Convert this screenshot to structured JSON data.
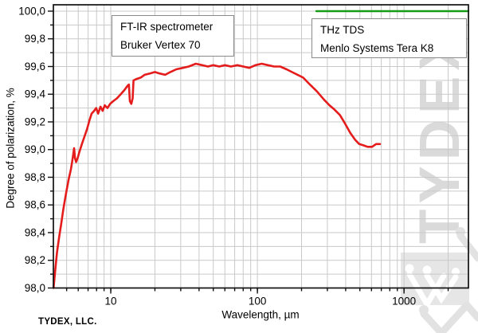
{
  "brand": {
    "label": "TYDEX, LLC."
  },
  "watermark": {
    "text": "TYDEX",
    "color": "#dadada"
  },
  "annotations": {
    "ftir": {
      "lines": [
        "FT-IR spectrometer",
        "Bruker Vertex 70"
      ]
    },
    "thz": {
      "lines": [
        "THz TDS",
        "Menlo Systems Tera K8"
      ]
    }
  },
  "chart_data": {
    "type": "line",
    "title": "",
    "xlabel": "Wavelength, µm",
    "ylabel": "Degree of polarization, %",
    "x_scale": "log",
    "xlim": [
      4.06,
      2750
    ],
    "ylim": [
      98.0,
      100.046
    ],
    "grid": true,
    "legend_position": "none",
    "x_ticks": [
      10,
      100,
      1000
    ],
    "x_tick_labels": [
      "10",
      "100",
      "1000"
    ],
    "y_ticks": [
      98.0,
      98.2,
      98.4,
      98.6,
      98.8,
      99.0,
      99.2,
      99.4,
      99.6,
      99.8,
      100.0
    ],
    "y_tick_labels": [
      "98,0",
      "98,2",
      "98,4",
      "98,6",
      "98,8",
      "99,0",
      "99,2",
      "99,4",
      "99,6",
      "99,8",
      "100,0"
    ],
    "grid_color": "#c9c9c9",
    "axis_color": "#111111",
    "series": [
      {
        "name": "FT-IR spectrometer Bruker Vertex 70",
        "color": "#e51c1c",
        "width": 2.6,
        "points": [
          [
            4.07,
            98.0
          ],
          [
            4.12,
            98.06
          ],
          [
            4.2,
            98.15
          ],
          [
            4.3,
            98.26
          ],
          [
            4.45,
            98.37
          ],
          [
            4.6,
            98.47
          ],
          [
            4.75,
            98.57
          ],
          [
            4.95,
            98.68
          ],
          [
            5.15,
            98.78
          ],
          [
            5.35,
            98.86
          ],
          [
            5.5,
            98.94
          ],
          [
            5.62,
            99.01
          ],
          [
            5.7,
            98.94
          ],
          [
            5.8,
            98.91
          ],
          [
            5.95,
            98.94
          ],
          [
            6.1,
            98.98
          ],
          [
            6.35,
            99.04
          ],
          [
            6.6,
            99.09
          ],
          [
            6.9,
            99.15
          ],
          [
            7.15,
            99.21
          ],
          [
            7.4,
            99.26
          ],
          [
            7.7,
            99.28
          ],
          [
            7.95,
            99.3
          ],
          [
            8.2,
            99.26
          ],
          [
            8.5,
            99.31
          ],
          [
            8.8,
            99.28
          ],
          [
            9.1,
            99.32
          ],
          [
            9.5,
            99.3
          ],
          [
            9.9,
            99.33
          ],
          [
            10.4,
            99.35
          ],
          [
            11,
            99.37
          ],
          [
            11.7,
            99.4
          ],
          [
            12.4,
            99.43
          ],
          [
            13,
            99.46
          ],
          [
            13.3,
            99.47
          ],
          [
            13.5,
            99.35
          ],
          [
            13.8,
            99.33
          ],
          [
            14.1,
            99.37
          ],
          [
            14.3,
            99.5
          ],
          [
            15,
            99.51
          ],
          [
            16,
            99.52
          ],
          [
            17,
            99.54
          ],
          [
            18.5,
            99.55
          ],
          [
            20,
            99.56
          ],
          [
            21.5,
            99.55
          ],
          [
            23.5,
            99.54
          ],
          [
            25.5,
            99.56
          ],
          [
            28,
            99.58
          ],
          [
            31,
            99.59
          ],
          [
            34,
            99.6
          ],
          [
            38,
            99.62
          ],
          [
            42,
            99.61
          ],
          [
            46,
            99.6
          ],
          [
            50,
            99.61
          ],
          [
            55,
            99.6
          ],
          [
            60,
            99.61
          ],
          [
            66,
            99.6
          ],
          [
            73,
            99.61
          ],
          [
            80,
            99.6
          ],
          [
            88,
            99.59
          ],
          [
            97,
            99.61
          ],
          [
            107,
            99.62
          ],
          [
            118,
            99.61
          ],
          [
            130,
            99.6
          ],
          [
            143,
            99.6
          ],
          [
            158,
            99.58
          ],
          [
            172,
            99.56
          ],
          [
            188,
            99.54
          ],
          [
            205,
            99.52
          ],
          [
            228,
            99.47
          ],
          [
            255,
            99.42
          ],
          [
            285,
            99.36
          ],
          [
            310,
            99.32
          ],
          [
            335,
            99.29
          ],
          [
            365,
            99.25
          ],
          [
            395,
            99.19
          ],
          [
            430,
            99.12
          ],
          [
            465,
            99.07
          ],
          [
            495,
            99.04
          ],
          [
            530,
            99.03
          ],
          [
            565,
            99.02
          ],
          [
            605,
            99.02
          ],
          [
            645,
            99.04
          ],
          [
            685,
            99.04
          ]
        ]
      },
      {
        "name": "THz TDS Menlo Systems Tera K8",
        "color": "#169b16",
        "width": 2.4,
        "points": [
          [
            252,
            100.0
          ],
          [
            2750,
            100.0
          ]
        ]
      }
    ]
  }
}
